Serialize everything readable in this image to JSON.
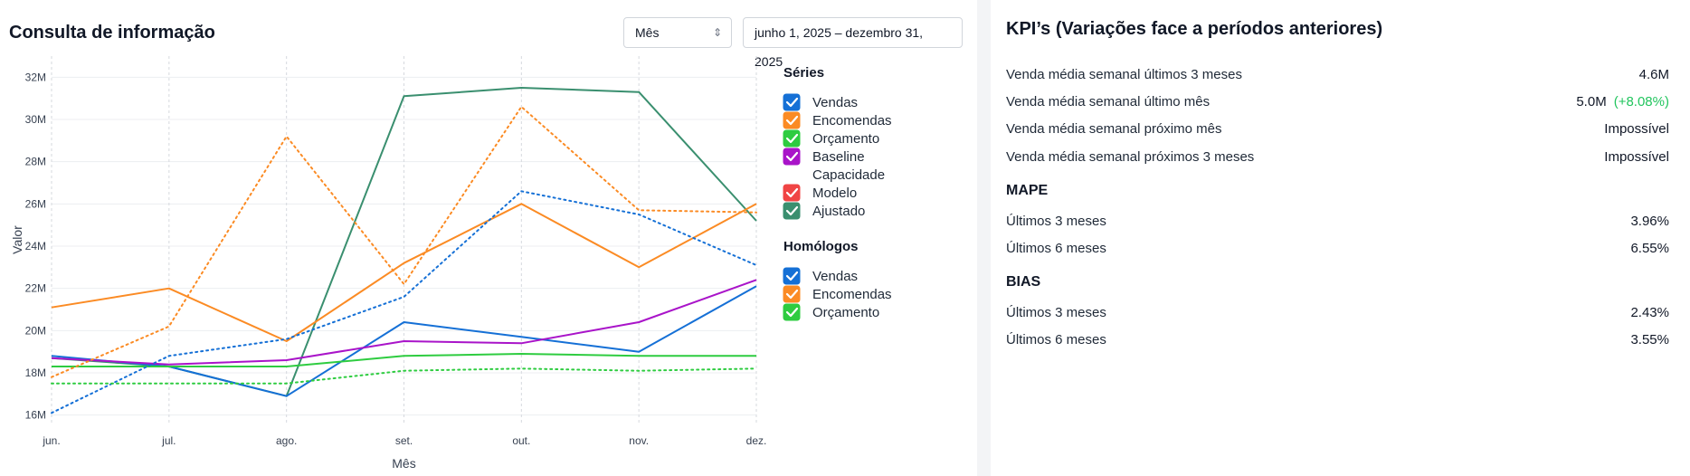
{
  "chart_panel": {
    "title": "Consulta de informação",
    "period_select": {
      "value": "Mês"
    },
    "date_range": "junho 1, 2025 – dezembro 31, 2025"
  },
  "chart_data": {
    "type": "line",
    "xlabel": "Mês",
    "ylabel": "Valor",
    "categories": [
      "jun.",
      "jul.",
      "ago.",
      "set.",
      "out.",
      "nov.",
      "dez."
    ],
    "y_ticks": [
      16,
      18,
      20,
      22,
      24,
      26,
      28,
      30,
      32
    ],
    "y_tick_labels": [
      "16M",
      "18M",
      "20M",
      "22M",
      "24M",
      "26M",
      "28M",
      "30M",
      "32M"
    ],
    "ylim": [
      15.6,
      33
    ],
    "series": [
      {
        "name": "Ajustado",
        "group": "Séries",
        "color": "#3a8f6f",
        "dash": false,
        "values": [
          18.7,
          18.3,
          16.9,
          31.1,
          31.5,
          31.3,
          25.2
        ]
      },
      {
        "name": "Encomendas",
        "group": "Séries",
        "color": "#fb8b24",
        "dash": false,
        "values": [
          21.1,
          22.0,
          19.5,
          23.2,
          26.0,
          23.0,
          26.0
        ]
      },
      {
        "name": "Vendas",
        "group": "Séries",
        "color": "#1570d6",
        "dash": false,
        "values": [
          18.8,
          18.3,
          16.9,
          20.4,
          19.7,
          19.0,
          22.1
        ]
      },
      {
        "name": "Baseline",
        "group": "Séries",
        "color": "#a914c9",
        "dash": false,
        "values": [
          18.7,
          18.4,
          18.6,
          19.5,
          19.4,
          20.4,
          22.4
        ]
      },
      {
        "name": "Orçamento",
        "group": "Séries",
        "color": "#2ecc40",
        "dash": false,
        "values": [
          18.3,
          18.3,
          18.3,
          18.8,
          18.9,
          18.8,
          18.8
        ]
      },
      {
        "name": "Encomendas",
        "group": "Homólogos",
        "color": "#fb8b24",
        "dash": true,
        "values": [
          17.8,
          20.2,
          29.2,
          22.2,
          30.6,
          25.7,
          25.6
        ]
      },
      {
        "name": "Vendas",
        "group": "Homólogos",
        "color": "#1570d6",
        "dash": true,
        "values": [
          16.1,
          18.8,
          19.6,
          21.6,
          26.6,
          25.5,
          23.1
        ]
      },
      {
        "name": "Orçamento",
        "group": "Homólogos",
        "color": "#2ecc40",
        "dash": true,
        "values": [
          17.5,
          17.5,
          17.5,
          18.1,
          18.2,
          18.1,
          18.2
        ]
      }
    ],
    "legend": {
      "groups": [
        {
          "title": "Séries",
          "items": [
            {
              "label": "Vendas",
              "color": "#1570d6",
              "checked": true
            },
            {
              "label": "Encomendas",
              "color": "#fb8b24",
              "checked": true
            },
            {
              "label": "Orçamento",
              "color": "#2ecc40",
              "checked": true
            },
            {
              "label": "Baseline",
              "color": "#a914c9",
              "checked": true
            },
            {
              "label": "Capacidade",
              "color": "#9ca3af",
              "checked": false
            },
            {
              "label": "Modelo",
              "color": "#f04444",
              "checked": true
            },
            {
              "label": "Ajustado",
              "color": "#3a8f6f",
              "checked": true
            }
          ]
        },
        {
          "title": "Homólogos",
          "items": [
            {
              "label": "Vendas",
              "color": "#1570d6",
              "checked": true
            },
            {
              "label": "Encomendas",
              "color": "#fb8b24",
              "checked": true
            },
            {
              "label": "Orçamento",
              "color": "#2ecc40",
              "checked": true
            }
          ]
        }
      ]
    }
  },
  "kpi_panel": {
    "title": "KPI’s (Variações face a períodos anteriores)",
    "rows": [
      {
        "label": "Venda média semanal últimos 3 meses",
        "value": "4.6M",
        "delta": ""
      },
      {
        "label": "Venda média semanal último mês",
        "value": "5.0M",
        "delta": "(+8.08%)"
      },
      {
        "label": "Venda média semanal próximo mês",
        "value": "Impossível",
        "delta": ""
      },
      {
        "label": "Venda média semanal próximos 3 meses",
        "value": "Impossível",
        "delta": ""
      }
    ],
    "mape": {
      "title": "MAPE",
      "rows": [
        {
          "label": "Últimos 3 meses",
          "value": "3.96%"
        },
        {
          "label": "Últimos 6 meses",
          "value": "6.55%"
        }
      ]
    },
    "bias": {
      "title": "BIAS",
      "rows": [
        {
          "label": "Últimos 3 meses",
          "value": "2.43%"
        },
        {
          "label": "Últimos 6 meses",
          "value": "3.55%"
        }
      ]
    }
  }
}
